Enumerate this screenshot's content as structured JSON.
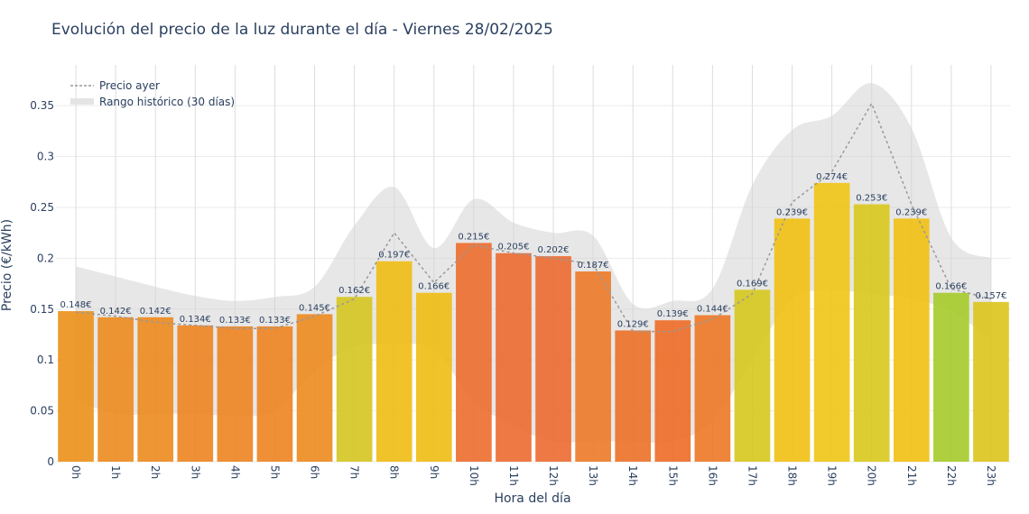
{
  "chart_data": {
    "type": "bar",
    "title": "Evolución del precio de la luz durante el día - Viernes 28/02/2025",
    "xlabel": "Hora del día",
    "ylabel": "Precio (€/kWh)",
    "ylim": [
      0,
      0.39
    ],
    "yticks": [
      {
        "value": 0,
        "label": "0"
      },
      {
        "value": 0.05,
        "label": "0.05"
      },
      {
        "value": 0.1,
        "label": "0.1"
      },
      {
        "value": 0.15,
        "label": "0.15"
      },
      {
        "value": 0.2,
        "label": "0.2"
      },
      {
        "value": 0.25,
        "label": "0.25"
      },
      {
        "value": 0.3,
        "label": "0.3"
      },
      {
        "value": 0.35,
        "label": "0.35"
      }
    ],
    "grid": true,
    "legend_position": "top-left",
    "categories": [
      "0h",
      "1h",
      "2h",
      "3h",
      "4h",
      "5h",
      "6h",
      "7h",
      "8h",
      "9h",
      "10h",
      "11h",
      "12h",
      "13h",
      "14h",
      "15h",
      "16h",
      "17h",
      "18h",
      "19h",
      "20h",
      "21h",
      "22h",
      "23h"
    ],
    "series": [
      {
        "kind": "bar",
        "values": [
          0.148,
          0.142,
          0.142,
          0.134,
          0.133,
          0.133,
          0.145,
          0.162,
          0.197,
          0.166,
          0.215,
          0.205,
          0.202,
          0.187,
          0.129,
          0.139,
          0.144,
          0.169,
          0.239,
          0.274,
          0.253,
          0.239,
          0.166,
          0.157
        ],
        "labels": [
          "0.148€",
          "0.142€",
          "0.142€",
          "0.134€",
          "0.133€",
          "0.133€",
          "0.145€",
          "0.162€",
          "0.197€",
          "0.166€",
          "0.215€",
          "0.205€",
          "0.202€",
          "0.187€",
          "0.129€",
          "0.139€",
          "0.144€",
          "0.169€",
          "0.239€",
          "0.274€",
          "0.253€",
          "0.239€",
          "0.166€",
          "0.157€"
        ],
        "colors": [
          "#eb9018",
          "#ec8a1e",
          "#ec8a1e",
          "#ed8320",
          "#ed8320",
          "#ed8320",
          "#ec8a1e",
          "#d4c520",
          "#f0bd14",
          "#f0bd14",
          "#ec6d2e",
          "#ec6a30",
          "#ec6a30",
          "#ec7a28",
          "#ec7026",
          "#ed6b26",
          "#ec7826",
          "#d6c81e",
          "#f1c012",
          "#f0c514",
          "#d8c81c",
          "#f1c012",
          "#a5cb2a",
          "#dbc41c"
        ]
      },
      {
        "kind": "line",
        "name": "Precio ayer",
        "values": [
          0.147,
          0.143,
          0.137,
          0.134,
          0.131,
          0.131,
          0.143,
          0.16,
          0.225,
          0.176,
          0.213,
          0.205,
          0.2,
          0.194,
          0.128,
          0.128,
          0.14,
          0.165,
          0.255,
          0.285,
          0.352,
          0.253,
          0.17,
          0.16
        ],
        "color": "#999999"
      },
      {
        "kind": "band",
        "name": "Rango histórico (30 días)",
        "upper": [
          0.192,
          0.182,
          0.172,
          0.163,
          0.158,
          0.162,
          0.172,
          0.232,
          0.27,
          0.21,
          0.258,
          0.235,
          0.225,
          0.222,
          0.155,
          0.158,
          0.17,
          0.272,
          0.326,
          0.34,
          0.372,
          0.328,
          0.22,
          0.2
        ],
        "lower": [
          0.06,
          0.047,
          0.047,
          0.047,
          0.045,
          0.05,
          0.09,
          0.113,
          0.115,
          0.11,
          0.06,
          0.035,
          0.02,
          0.02,
          0.02,
          0.02,
          0.04,
          0.1,
          0.16,
          0.168,
          0.165,
          0.16,
          0.148,
          0.12
        ],
        "color": "#d3d3d3"
      }
    ]
  }
}
